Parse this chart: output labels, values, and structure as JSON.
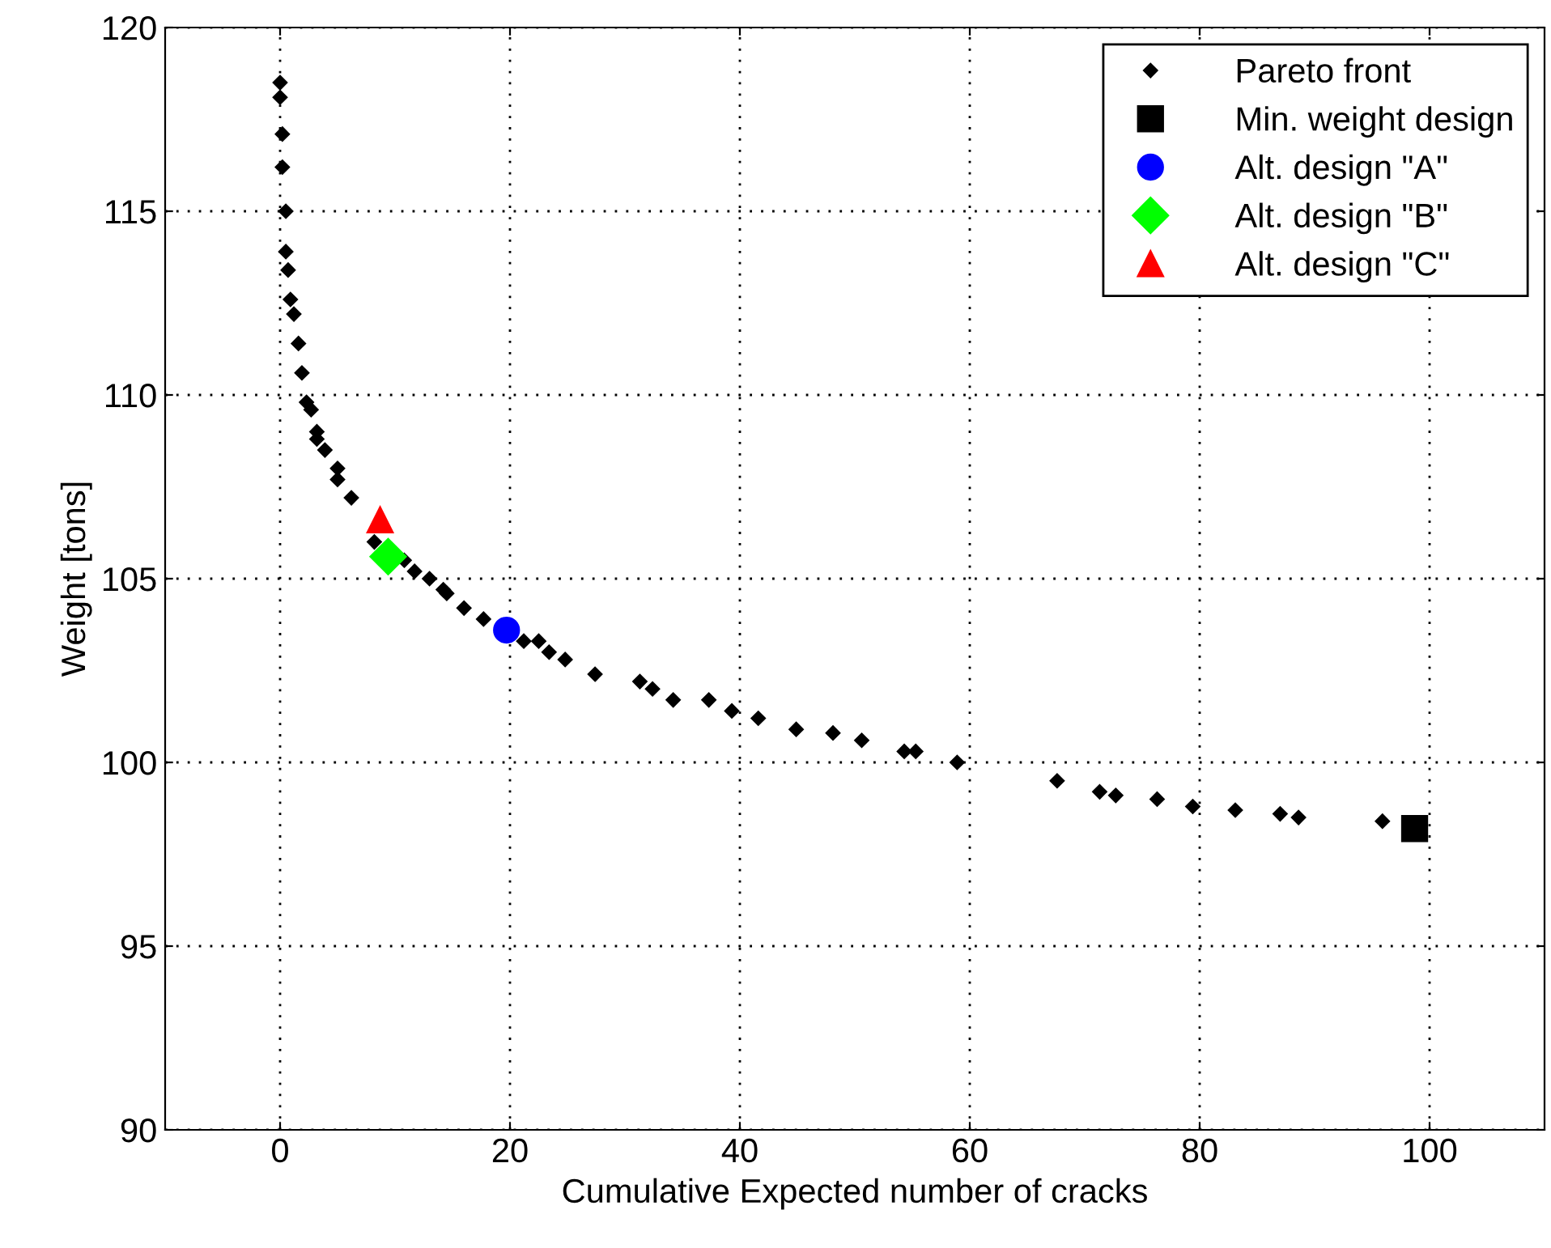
{
  "chart_data": {
    "type": "scatter",
    "xlabel": "Cumulative Expected number of cracks",
    "ylabel": "Weight [tons]",
    "xlim": [
      -10,
      110
    ],
    "xticks": [
      0,
      20,
      40,
      60,
      80,
      100
    ],
    "ylim": [
      90,
      120
    ],
    "yticks": [
      90,
      95,
      100,
      105,
      110,
      115,
      120
    ],
    "grid": true,
    "legend": "top right",
    "series": [
      {
        "name": "Pareto front",
        "color": "#000000",
        "marker": "diamond",
        "x": [
          0,
          0,
          0.2,
          0.2,
          0.5,
          0.5,
          0.7,
          0.9,
          1.2,
          1.6,
          1.9,
          2.3,
          2.7,
          3.2,
          3.2,
          3.9,
          5.0,
          5.0,
          6.2,
          8.2,
          10.8,
          11.7,
          13.0,
          14.2,
          14.5,
          16.0,
          17.7,
          21.2,
          22.5,
          23.4,
          24.8,
          27.4,
          31.3,
          32.4,
          34.2,
          37.3,
          39.3,
          41.6,
          44.9,
          48.1,
          50.6,
          54.3,
          55.3,
          58.9,
          67.6,
          71.3,
          72.7,
          76.3,
          79.4,
          83.1,
          87.0,
          88.6,
          95.9
        ],
        "values": [
          118.5,
          118.1,
          117.1,
          116.2,
          115.0,
          113.9,
          113.4,
          112.6,
          112.2,
          111.4,
          110.6,
          109.8,
          109.6,
          109.0,
          108.8,
          108.5,
          108.0,
          107.7,
          107.2,
          106.0,
          105.5,
          105.2,
          105.0,
          104.7,
          104.6,
          104.2,
          103.9,
          103.3,
          103.3,
          103.0,
          102.8,
          102.4,
          102.2,
          102.0,
          101.7,
          101.7,
          101.4,
          101.2,
          100.9,
          100.8,
          100.6,
          100.3,
          100.3,
          100.0,
          99.5,
          99.2,
          99.1,
          99.0,
          98.8,
          98.7,
          98.6,
          98.5,
          98.4
        ]
      },
      {
        "name": "Min. weight design",
        "color": "#000000",
        "marker": "square",
        "x": [
          98.7
        ],
        "values": [
          98.2
        ]
      },
      {
        "name": "Alt. design \"A\"",
        "color": "#0000ff",
        "marker": "circle",
        "x": [
          19.7
        ],
        "values": [
          103.6
        ]
      },
      {
        "name": "Alt. design \"B\"",
        "color": "#00ff00",
        "marker": "diamond",
        "x": [
          9.4
        ],
        "values": [
          105.6
        ]
      },
      {
        "name": "Alt. design \"C\"",
        "color": "#ff0000",
        "marker": "triangle",
        "x": [
          8.7
        ],
        "values": [
          106.6
        ]
      }
    ]
  }
}
